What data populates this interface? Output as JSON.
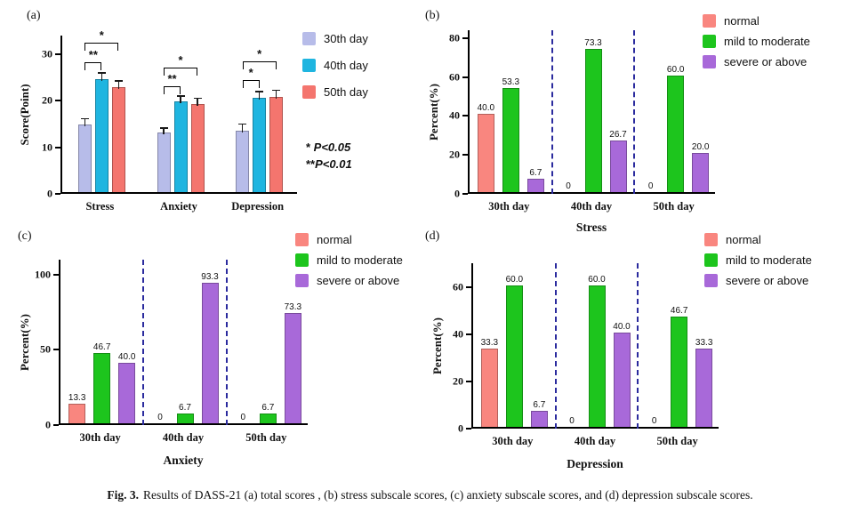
{
  "figure": {
    "caption_prefix": "Fig. 3.",
    "caption_text": "Results of DASS-21 (a) total scores , (b) stress subscale scores, (c) anxiety subscale scores, and (d) depression subscale scores."
  },
  "colors": {
    "day30": "#b7bce9",
    "day40": "#1fb5e0",
    "day50": "#f4756e",
    "normal": "#f9867f",
    "mild_to_moderate": "#1dc51d",
    "severe_or_above": "#a869d9",
    "separator": "#2b2b9e",
    "axis": "#111111"
  },
  "chart_data": [
    {
      "id": "a",
      "type": "bar",
      "panel_label": "(a)",
      "title": "",
      "xlabel": "",
      "ylabel": "Score(Point)",
      "ylim": [
        0,
        34
      ],
      "yticks": [
        0,
        10,
        20,
        30
      ],
      "categories": [
        "Stress",
        "Anxiety",
        "Depression"
      ],
      "legend_position": "right-top",
      "show_values": false,
      "series": [
        {
          "name": "30th day",
          "color_key": "day30",
          "values": [
            14.5,
            12.8,
            13.2
          ],
          "errors": [
            1.6,
            1.3,
            1.8
          ]
        },
        {
          "name": "40th day",
          "color_key": "day40",
          "values": [
            24.2,
            19.5,
            20.3
          ],
          "errors": [
            1.8,
            1.5,
            1.7
          ]
        },
        {
          "name": "50th day",
          "color_key": "day50",
          "values": [
            22.5,
            19.0,
            20.5
          ],
          "errors": [
            1.8,
            1.5,
            1.8
          ]
        }
      ],
      "significance_brackets": [
        {
          "group": 0,
          "from": 0,
          "to": 1,
          "label": "**",
          "y": 28.3
        },
        {
          "group": 0,
          "from": 0,
          "to": 2,
          "label": "*",
          "y": 32.5
        },
        {
          "group": 1,
          "from": 0,
          "to": 1,
          "label": "**",
          "y": 23.2
        },
        {
          "group": 1,
          "from": 0,
          "to": 2,
          "label": "*",
          "y": 27.2
        },
        {
          "group": 2,
          "from": 0,
          "to": 1,
          "label": "*",
          "y": 24.5
        },
        {
          "group": 2,
          "from": 0,
          "to": 2,
          "label": "*",
          "y": 28.5
        }
      ],
      "p_notes": [
        {
          "stars": "* ",
          "text": "P<0.05"
        },
        {
          "stars": "**",
          "text": "P<0.01"
        }
      ]
    },
    {
      "id": "b",
      "type": "bar",
      "panel_label": "(b)",
      "title": "",
      "xlabel": "Stress",
      "ylabel": "Percent(%)",
      "ylim": [
        0,
        84
      ],
      "yticks": [
        0,
        20,
        40,
        60,
        80
      ],
      "categories": [
        "30th day",
        "40th day",
        "50th day"
      ],
      "legend_position": "right-top",
      "show_values": true,
      "series": [
        {
          "name": "normal",
          "color_key": "normal",
          "values": [
            40.0,
            0,
            0
          ]
        },
        {
          "name": "mild to moderate",
          "color_key": "mild_to_moderate",
          "values": [
            53.3,
            73.3,
            60.0
          ]
        },
        {
          "name": "severe or above",
          "color_key": "severe_or_above",
          "values": [
            6.7,
            26.7,
            20.0
          ]
        }
      ]
    },
    {
      "id": "c",
      "type": "bar",
      "panel_label": "(c)",
      "title": "",
      "xlabel": "Anxiety",
      "ylabel": "Percent(%)",
      "ylim": [
        0,
        110
      ],
      "yticks": [
        0,
        50,
        100
      ],
      "categories": [
        "30th day",
        "40th day",
        "50th day"
      ],
      "legend_position": "right-top",
      "show_values": true,
      "series": [
        {
          "name": "normal",
          "color_key": "normal",
          "values": [
            13.3,
            0,
            0
          ]
        },
        {
          "name": "mild to moderate",
          "color_key": "mild_to_moderate",
          "values": [
            46.7,
            6.7,
            6.7
          ]
        },
        {
          "name": "severe or above",
          "color_key": "severe_or_above",
          "values": [
            40.0,
            93.3,
            73.3
          ]
        }
      ]
    },
    {
      "id": "d",
      "type": "bar",
      "panel_label": "(d)",
      "title": "",
      "xlabel": "Depression",
      "ylabel": "Percent(%)",
      "ylim": [
        0,
        70
      ],
      "yticks": [
        0,
        20,
        40,
        60
      ],
      "categories": [
        "30th day",
        "40th day",
        "50th day"
      ],
      "legend_position": "right-top",
      "show_values": true,
      "series": [
        {
          "name": "normal",
          "color_key": "normal",
          "values": [
            33.3,
            0,
            0
          ]
        },
        {
          "name": "mild to moderate",
          "color_key": "mild_to_moderate",
          "values": [
            60.0,
            60.0,
            46.7
          ]
        },
        {
          "name": "severe or above",
          "color_key": "severe_or_above",
          "values": [
            6.7,
            40.0,
            33.3
          ]
        }
      ]
    }
  ]
}
